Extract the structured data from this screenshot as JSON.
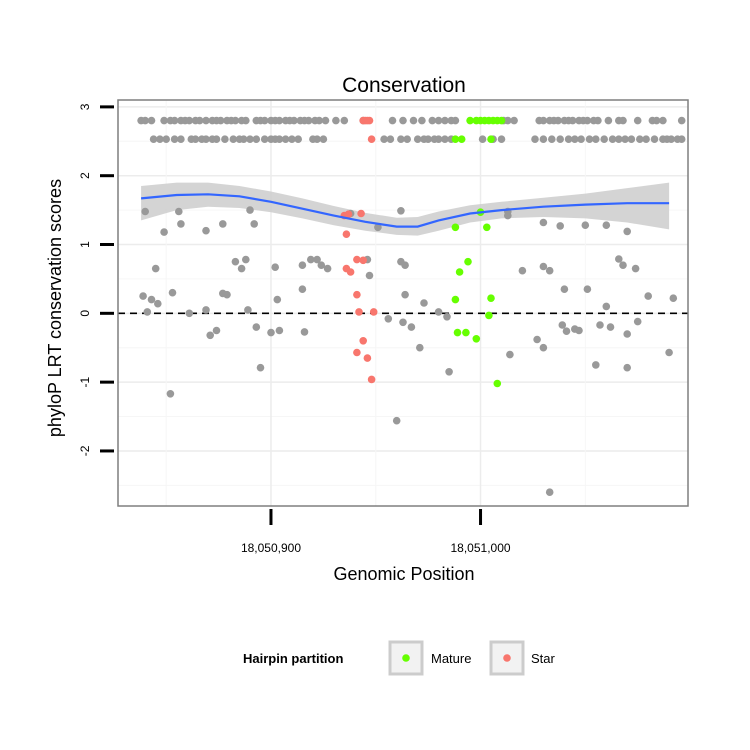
{
  "chart_data": {
    "type": "scatter",
    "title": "Conservation",
    "xlabel": "Genomic Position",
    "ylabel": "phyloP LRT conservation scores",
    "xlim": [
      18050827,
      18051099
    ],
    "ylim": [
      -2.8,
      3.1
    ],
    "xticks": [
      18050900,
      18051000
    ],
    "xtick_labels": [
      "18,050,900",
      "18,051,000"
    ],
    "yticks": [
      -2,
      -1,
      0,
      1,
      2,
      3
    ],
    "ytick_labels": [
      "-2",
      "-1",
      "0",
      "1",
      "2",
      "3"
    ],
    "grid": true,
    "reference_line": {
      "y": 0,
      "style": "dashed"
    },
    "smooth_line": {
      "x": [
        18050838,
        18050855,
        18050870,
        18050885,
        18050900,
        18050915,
        18050930,
        18050945,
        18050960,
        18050970,
        18050980,
        18050995,
        18051010,
        18051030,
        18051050,
        18051070,
        18051090
      ],
      "y": [
        1.67,
        1.72,
        1.73,
        1.7,
        1.62,
        1.52,
        1.42,
        1.33,
        1.26,
        1.26,
        1.35,
        1.45,
        1.5,
        1.55,
        1.58,
        1.6,
        1.6
      ],
      "ci_upper": [
        1.85,
        1.9,
        1.9,
        1.85,
        1.77,
        1.67,
        1.56,
        1.46,
        1.39,
        1.4,
        1.48,
        1.57,
        1.62,
        1.68,
        1.74,
        1.82,
        1.9
      ],
      "ci_lower": [
        1.35,
        1.5,
        1.55,
        1.53,
        1.47,
        1.38,
        1.28,
        1.2,
        1.14,
        1.13,
        1.2,
        1.32,
        1.38,
        1.4,
        1.38,
        1.32,
        1.22
      ],
      "color": "#3366ff",
      "band_color": "#cccccc"
    },
    "legend": {
      "title": "Hairpin partition",
      "placement": "bottom",
      "entries": [
        {
          "label": "Mature",
          "color": "#66ff00"
        },
        {
          "label": "Star",
          "color": "#f8766d"
        }
      ]
    },
    "colors": {
      "other": "#999999",
      "mature": "#66ff00",
      "star": "#f8766d"
    },
    "series": [
      {
        "group": "other",
        "points": [
          [
            18050838,
            2.8
          ],
          [
            18050840,
            2.8
          ],
          [
            18050843,
            2.8
          ],
          [
            18050849,
            2.8
          ],
          [
            18050852,
            2.8
          ],
          [
            18050854,
            2.8
          ],
          [
            18050857,
            2.8
          ],
          [
            18050859,
            2.8
          ],
          [
            18050861,
            2.8
          ],
          [
            18050864,
            2.8
          ],
          [
            18050866,
            2.8
          ],
          [
            18050869,
            2.8
          ],
          [
            18050872,
            2.8
          ],
          [
            18050874,
            2.8
          ],
          [
            18050876,
            2.8
          ],
          [
            18050879,
            2.8
          ],
          [
            18050881,
            2.8
          ],
          [
            18050883,
            2.8
          ],
          [
            18050886,
            2.8
          ],
          [
            18050888,
            2.8
          ],
          [
            18050893,
            2.8
          ],
          [
            18050895,
            2.8
          ],
          [
            18050897,
            2.8
          ],
          [
            18050900,
            2.8
          ],
          [
            18050902,
            2.8
          ],
          [
            18050904,
            2.8
          ],
          [
            18050907,
            2.8
          ],
          [
            18050909,
            2.8
          ],
          [
            18050911,
            2.8
          ],
          [
            18050914,
            2.8
          ],
          [
            18050916,
            2.8
          ],
          [
            18050918,
            2.8
          ],
          [
            18050921,
            2.8
          ],
          [
            18050923,
            2.8
          ],
          [
            18050926,
            2.8
          ],
          [
            18050931,
            2.8
          ],
          [
            18050935,
            2.8
          ],
          [
            18050944,
            2.8
          ],
          [
            18050958,
            2.8
          ],
          [
            18050963,
            2.8
          ],
          [
            18050968,
            2.8
          ],
          [
            18050972,
            2.8
          ],
          [
            18050977,
            2.8
          ],
          [
            18050980,
            2.8
          ],
          [
            18050983,
            2.8
          ],
          [
            18050986,
            2.8
          ],
          [
            18050988,
            2.8
          ],
          [
            18051011,
            2.8
          ],
          [
            18051013,
            2.8
          ],
          [
            18051016,
            2.8
          ],
          [
            18051028,
            2.8
          ],
          [
            18051030,
            2.8
          ],
          [
            18051033,
            2.8
          ],
          [
            18051035,
            2.8
          ],
          [
            18051037,
            2.8
          ],
          [
            18051040,
            2.8
          ],
          [
            18051042,
            2.8
          ],
          [
            18051044,
            2.8
          ],
          [
            18051047,
            2.8
          ],
          [
            18051049,
            2.8
          ],
          [
            18051051,
            2.8
          ],
          [
            18051054,
            2.8
          ],
          [
            18051056,
            2.8
          ],
          [
            18051061,
            2.8
          ],
          [
            18051066,
            2.8
          ],
          [
            18051068,
            2.8
          ],
          [
            18051075,
            2.8
          ],
          [
            18051082,
            2.8
          ],
          [
            18051084,
            2.8
          ],
          [
            18051087,
            2.8
          ],
          [
            18051096,
            2.8
          ],
          [
            18050844,
            2.53
          ],
          [
            18050847,
            2.53
          ],
          [
            18050850,
            2.53
          ],
          [
            18050854,
            2.53
          ],
          [
            18050857,
            2.53
          ],
          [
            18050862,
            2.53
          ],
          [
            18050864,
            2.53
          ],
          [
            18050867,
            2.53
          ],
          [
            18050869,
            2.53
          ],
          [
            18050872,
            2.53
          ],
          [
            18050874,
            2.53
          ],
          [
            18050878,
            2.53
          ],
          [
            18050882,
            2.53
          ],
          [
            18050885,
            2.53
          ],
          [
            18050887,
            2.53
          ],
          [
            18050890,
            2.53
          ],
          [
            18050893,
            2.53
          ],
          [
            18050897,
            2.53
          ],
          [
            18050900,
            2.53
          ],
          [
            18050902,
            2.53
          ],
          [
            18050904,
            2.53
          ],
          [
            18050907,
            2.53
          ],
          [
            18050910,
            2.53
          ],
          [
            18050913,
            2.53
          ],
          [
            18050920,
            2.53
          ],
          [
            18050922,
            2.53
          ],
          [
            18050925,
            2.53
          ],
          [
            18050954,
            2.53
          ],
          [
            18050957,
            2.53
          ],
          [
            18050962,
            2.53
          ],
          [
            18050965,
            2.53
          ],
          [
            18050970,
            2.53
          ],
          [
            18050973,
            2.53
          ],
          [
            18050975,
            2.53
          ],
          [
            18050978,
            2.53
          ],
          [
            18050980,
            2.53
          ],
          [
            18050983,
            2.53
          ],
          [
            18050986,
            2.53
          ],
          [
            18051001,
            2.53
          ],
          [
            18051006,
            2.53
          ],
          [
            18051010,
            2.53
          ],
          [
            18051026,
            2.53
          ],
          [
            18051030,
            2.53
          ],
          [
            18051034,
            2.53
          ],
          [
            18051038,
            2.53
          ],
          [
            18051042,
            2.53
          ],
          [
            18051045,
            2.53
          ],
          [
            18051048,
            2.53
          ],
          [
            18051052,
            2.53
          ],
          [
            18051055,
            2.53
          ],
          [
            18051059,
            2.53
          ],
          [
            18051063,
            2.53
          ],
          [
            18051066,
            2.53
          ],
          [
            18051069,
            2.53
          ],
          [
            18051072,
            2.53
          ],
          [
            18051076,
            2.53
          ],
          [
            18051079,
            2.53
          ],
          [
            18051083,
            2.53
          ],
          [
            18051087,
            2.53
          ],
          [
            18051089,
            2.53
          ],
          [
            18051091,
            2.53
          ],
          [
            18051094,
            2.53
          ],
          [
            18051096,
            2.53
          ],
          [
            18050840,
            1.48
          ],
          [
            18050856,
            1.48
          ],
          [
            18050857,
            1.3
          ],
          [
            18050849,
            1.18
          ],
          [
            18050869,
            1.2
          ],
          [
            18050877,
            1.3
          ],
          [
            18050890,
            1.5
          ],
          [
            18050892,
            1.3
          ],
          [
            18050938,
            1.45
          ],
          [
            18050951,
            1.25
          ],
          [
            18050962,
            1.49
          ],
          [
            18051013,
            1.42
          ],
          [
            18051013,
            1.48
          ],
          [
            18051030,
            1.32
          ],
          [
            18051038,
            1.27
          ],
          [
            18051050,
            1.28
          ],
          [
            18051060,
            1.28
          ],
          [
            18051070,
            1.19
          ],
          [
            18050845,
            0.65
          ],
          [
            18050883,
            0.75
          ],
          [
            18050886,
            0.65
          ],
          [
            18050888,
            0.78
          ],
          [
            18050902,
            0.67
          ],
          [
            18050915,
            0.7
          ],
          [
            18050919,
            0.78
          ],
          [
            18050922,
            0.78
          ],
          [
            18050924,
            0.7
          ],
          [
            18050927,
            0.65
          ],
          [
            18050946,
            0.78
          ],
          [
            18050947,
            0.55
          ],
          [
            18050962,
            0.75
          ],
          [
            18050964,
            0.7
          ],
          [
            18051020,
            0.62
          ],
          [
            18051030,
            0.68
          ],
          [
            18051033,
            0.62
          ],
          [
            18051066,
            0.79
          ],
          [
            18051068,
            0.7
          ],
          [
            18051074,
            0.65
          ],
          [
            18050839,
            0.25
          ],
          [
            18050841,
            0.02
          ],
          [
            18050843,
            0.2
          ],
          [
            18050846,
            0.14
          ],
          [
            18050853,
            0.3
          ],
          [
            18050861,
            0.0
          ],
          [
            18050869,
            0.05
          ],
          [
            18050877,
            0.29
          ],
          [
            18050879,
            0.27
          ],
          [
            18050889,
            0.05
          ],
          [
            18050903,
            0.2
          ],
          [
            18050915,
            0.35
          ],
          [
            18050964,
            0.27
          ],
          [
            18050973,
            0.15
          ],
          [
            18050980,
            0.02
          ],
          [
            18051040,
            0.35
          ],
          [
            18051051,
            0.35
          ],
          [
            18051060,
            0.1
          ],
          [
            18051080,
            0.25
          ],
          [
            18051092,
            0.22
          ],
          [
            18050871,
            -0.32
          ],
          [
            18050874,
            -0.25
          ],
          [
            18050893,
            -0.2
          ],
          [
            18050900,
            -0.28
          ],
          [
            18050904,
            -0.25
          ],
          [
            18050916,
            -0.27
          ],
          [
            18050956,
            -0.08
          ],
          [
            18050963,
            -0.13
          ],
          [
            18050967,
            -0.2
          ],
          [
            18050971,
            -0.5
          ],
          [
            18050984,
            -0.05
          ],
          [
            18051014,
            -0.6
          ],
          [
            18051027,
            -0.38
          ],
          [
            18051030,
            -0.5
          ],
          [
            18051039,
            -0.17
          ],
          [
            18051041,
            -0.26
          ],
          [
            18051045,
            -0.23
          ],
          [
            18051047,
            -0.25
          ],
          [
            18051057,
            -0.17
          ],
          [
            18051062,
            -0.2
          ],
          [
            18051070,
            -0.3
          ],
          [
            18051075,
            -0.12
          ],
          [
            18051090,
            -0.57
          ],
          [
            18050852,
            -1.17
          ],
          [
            18050895,
            -0.79
          ],
          [
            18050985,
            -0.85
          ],
          [
            18051055,
            -0.75
          ],
          [
            18051070,
            -0.79
          ],
          [
            18050960,
            -1.56
          ],
          [
            18051033,
            -2.6
          ]
        ]
      },
      {
        "group": "star",
        "points": [
          [
            18050944,
            2.8
          ],
          [
            18050945,
            2.8
          ],
          [
            18050946,
            2.8
          ],
          [
            18050947,
            2.8
          ],
          [
            18050948,
            2.53
          ],
          [
            18050935,
            1.42
          ],
          [
            18050937,
            1.44
          ],
          [
            18050943,
            1.45
          ],
          [
            18050936,
            1.15
          ],
          [
            18050941,
            0.78
          ],
          [
            18050944,
            0.77
          ],
          [
            18050936,
            0.65
          ],
          [
            18050938,
            0.6
          ],
          [
            18050941,
            0.27
          ],
          [
            18050942,
            0.02
          ],
          [
            18050949,
            0.02
          ],
          [
            18050944,
            -0.4
          ],
          [
            18050941,
            -0.57
          ],
          [
            18050946,
            -0.65
          ],
          [
            18050948,
            -0.96
          ]
        ]
      },
      {
        "group": "mature",
        "points": [
          [
            18050995,
            2.8
          ],
          [
            18050998,
            2.8
          ],
          [
            18051000,
            2.8
          ],
          [
            18051002,
            2.8
          ],
          [
            18051004,
            2.8
          ],
          [
            18051006,
            2.8
          ],
          [
            18051008,
            2.8
          ],
          [
            18051010,
            2.8
          ],
          [
            18050988,
            2.53
          ],
          [
            18050991,
            2.53
          ],
          [
            18051005,
            2.53
          ],
          [
            18050988,
            1.25
          ],
          [
            18051003,
            1.25
          ],
          [
            18051000,
            1.47
          ],
          [
            18050994,
            0.75
          ],
          [
            18050990,
            0.6
          ],
          [
            18050988,
            0.2
          ],
          [
            18051005,
            0.22
          ],
          [
            18051004,
            -0.03
          ],
          [
            18050989,
            -0.28
          ],
          [
            18050993,
            -0.28
          ],
          [
            18050998,
            -0.37
          ],
          [
            18051008,
            -1.02
          ]
        ]
      }
    ]
  }
}
